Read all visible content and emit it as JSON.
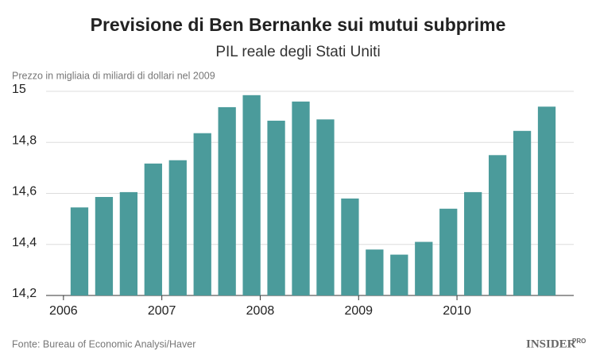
{
  "chart_data": {
    "type": "bar",
    "title": "Previsione di Ben Bernanke sui mutui subprime",
    "subtitle": "PIL reale degli Stati Uniti",
    "y_axis_label": "Prezzo in migliaia di miliardi di dollari nel 2009",
    "source": "Fonte: Bureau of Economic Analysi/Haver",
    "brand": "INSIDER",
    "brand_suffix": "PRO",
    "categories": [
      "2006",
      null,
      null,
      null,
      "2007",
      null,
      null,
      null,
      "2008",
      null,
      null,
      null,
      "2009",
      null,
      null,
      null,
      "2010",
      null,
      null,
      null
    ],
    "values": [
      14.545,
      14.586,
      14.605,
      14.717,
      14.73,
      14.836,
      14.938,
      14.985,
      14.885,
      14.96,
      14.89,
      14.58,
      14.38,
      14.36,
      14.41,
      14.54,
      14.605,
      14.75,
      14.845,
      14.94
    ],
    "color": "#4b9b9b",
    "ylim": [
      14.2,
      15
    ],
    "yticks": [
      {
        "value": 14.2,
        "label": "14,2"
      },
      {
        "value": 14.4,
        "label": "14,4"
      },
      {
        "value": 14.6,
        "label": "14,6"
      },
      {
        "value": 14.8,
        "label": "14,8"
      },
      15
    ],
    "grid": true
  }
}
